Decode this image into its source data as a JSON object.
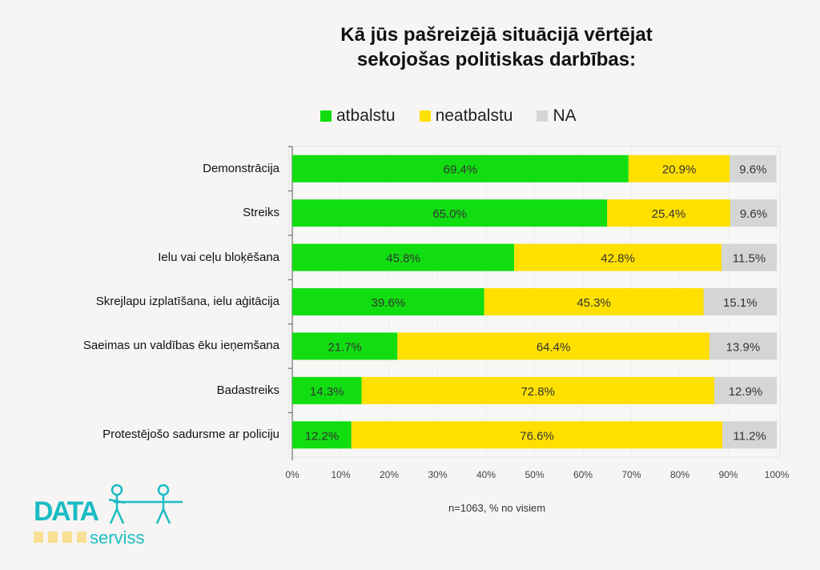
{
  "chart_data": {
    "type": "bar",
    "orientation": "horizontal",
    "stacked": true,
    "title": "Kā jūs pašreizējā situācijā vērtējat sekojošas politiskas darbības:",
    "title_lines": [
      "Kā jūs pašreizējā situācijā vērtējat",
      "sekojošas politiskas darbības:"
    ],
    "categories": [
      "Demonstrācija",
      "Streiks",
      "Ielu vai ceļu bloķēšana",
      "Skrejlapu izplatīšana, ielu aģitācija",
      "Saeimas un valdības ēku ieņemšana",
      "Badastreiks",
      "Protestējošo sadursme ar policiju"
    ],
    "series": [
      {
        "name": "atbalstu",
        "color": "#11dd11",
        "values": [
          69.4,
          65.0,
          45.8,
          39.6,
          21.7,
          14.3,
          12.2
        ],
        "labels": [
          "69.4%",
          "65.0%",
          "45.8%",
          "39.6%",
          "21.7%",
          "14.3%",
          "12.2%"
        ]
      },
      {
        "name": "neatbalstu",
        "color": "#ffe000",
        "values": [
          20.9,
          25.4,
          42.8,
          45.3,
          64.4,
          72.8,
          76.6
        ],
        "labels": [
          "20.9%",
          "25.4%",
          "42.8%",
          "45.3%",
          "64.4%",
          "72.8%",
          "76.6%"
        ]
      },
      {
        "name": "NA",
        "color": "#d4d6d4",
        "values": [
          9.6,
          9.6,
          11.5,
          15.1,
          13.9,
          12.9,
          11.2
        ],
        "labels": [
          "9.6%",
          "9.6%",
          "11.5%",
          "15.1%",
          "13.9%",
          "12.9%",
          "11.2%"
        ]
      }
    ],
    "xlim": [
      0,
      100
    ],
    "xticks": [
      "0%",
      "10%",
      "20%",
      "30%",
      "40%",
      "50%",
      "60%",
      "70%",
      "80%",
      "90%",
      "100%"
    ],
    "legend_position": "top",
    "grid": true
  },
  "note": "n=1063, % no visiem",
  "logo": {
    "text": "DATA",
    "subtext": "serviss",
    "color": "#1bbcc4"
  }
}
